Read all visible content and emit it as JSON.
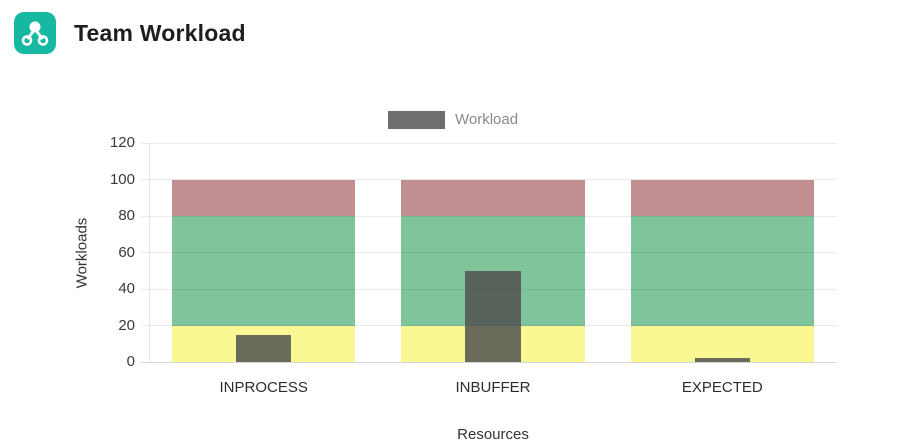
{
  "header": {
    "title": "Team Workload",
    "icon": "workflow-icon",
    "icon_color": "#17b8a2"
  },
  "chart_data": {
    "type": "bar",
    "categories": [
      "INPROCESS",
      "INBUFFER",
      "EXPECTED"
    ],
    "series": [
      {
        "name": "Workload",
        "values": [
          15,
          50,
          2
        ],
        "color": "rgba(80,80,80,0.84)"
      }
    ],
    "legend": {
      "label": "Workload",
      "swatch_color": "#6e6e6e",
      "position": "top"
    },
    "xlabel": "Resources",
    "ylabel": "Workloads",
    "ylim": [
      0,
      120
    ],
    "yticks": [
      0,
      20,
      40,
      60,
      80,
      100,
      120
    ],
    "grid": true,
    "bands": [
      {
        "from": 0,
        "to": 20,
        "color": "#f9f893"
      },
      {
        "from": 20,
        "to": 80,
        "color": "#80c49c"
      },
      {
        "from": 80,
        "to": 100,
        "color": "#c18f91"
      }
    ]
  }
}
